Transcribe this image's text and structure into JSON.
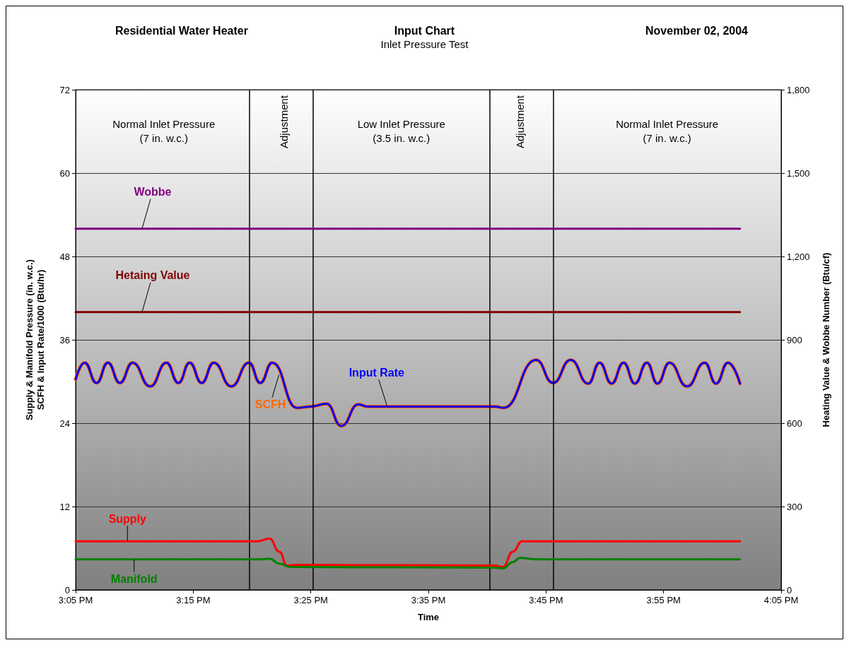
{
  "chart_data": {
    "type": "line",
    "title": "Input Chart",
    "subtitle": "Inlet Pressure Test",
    "annotations": [
      "Residential Water Heater",
      "November 02, 2004",
      "Normal Inlet Pressure\n(7 in. w.c.)",
      "Adjustment",
      "Low Inlet Pressure\n(3.5 in. w.c.)",
      "Adjustment",
      "Normal Inlet Pressure\n(7 in. w.c.)"
    ],
    "xlabel": "Time",
    "ylabel": "Supply & Manifold Pressure (in. w.c.)\nSCFH & Input Rate/1000 (Btu/hr)",
    "y2label": "Heating Value & Wobbe Number (Btu/cf)",
    "xlim": [
      15.0833,
      16.0833
    ],
    "xticks": [
      {
        "value": 15.0833,
        "label": "3:05 PM"
      },
      {
        "value": 15.25,
        "label": "3:15 PM"
      },
      {
        "value": 15.4167,
        "label": "3:25 PM"
      },
      {
        "value": 15.5833,
        "label": "3:35 PM"
      },
      {
        "value": 15.75,
        "label": "3:45 PM"
      },
      {
        "value": 15.9167,
        "label": "3:55 PM"
      },
      {
        "value": 16.0833,
        "label": "4:05 PM"
      }
    ],
    "ylim": [
      0,
      72
    ],
    "yticks": [
      0,
      12,
      24,
      36,
      48,
      60,
      72
    ],
    "y2lim": [
      0,
      1800
    ],
    "y2ticks": [
      0,
      {
        "value": 300,
        "label": "300"
      },
      {
        "value": 600,
        "label": "600"
      },
      {
        "value": 900,
        "label": "900"
      },
      {
        "value": 1200,
        "label": "1,200"
      },
      {
        "value": 1500,
        "label": "1,500"
      },
      {
        "value": 1800,
        "label": "1,800"
      }
    ],
    "grid": "y",
    "legend": false,
    "marker": "none",
    "line_style": "solid",
    "ref_lines": [
      {
        "axis": "x",
        "value": 15.3333,
        "color": "#000000"
      },
      {
        "axis": "x",
        "value": 15.4233,
        "color": "#000000"
      },
      {
        "axis": "x",
        "value": 15.6667,
        "color": "#000000"
      },
      {
        "axis": "x",
        "value": 15.76,
        "color": "#000000"
      }
    ],
    "series": [
      {
        "name": "SCFH",
        "color": "#ff6600",
        "x": [
          15.0833,
          15.096,
          15.113,
          15.129,
          15.146,
          15.164,
          15.189,
          15.212,
          15.229,
          15.245,
          15.262,
          15.279,
          15.304,
          15.329,
          15.345,
          15.362,
          15.397,
          15.417,
          15.439,
          15.46,
          15.484,
          15.497,
          15.678,
          15.69,
          15.736,
          15.76,
          15.785,
          15.81,
          15.826,
          15.843,
          15.86,
          15.876,
          15.893,
          15.908,
          15.925,
          15.95,
          15.975,
          15.991,
          16.008,
          16.025
        ],
        "values": [
          30.3,
          32.7,
          29.8,
          32.7,
          29.8,
          32.7,
          29.3,
          32.7,
          29.8,
          32.7,
          29.8,
          32.7,
          29.3,
          32.7,
          29.8,
          32.7,
          26.2,
          26.4,
          26.8,
          23.6,
          26.7,
          26.4,
          26.4,
          26.2,
          33.1,
          29.8,
          33.1,
          29.7,
          32.7,
          29.7,
          32.7,
          29.7,
          32.7,
          29.7,
          32.7,
          29.3,
          32.7,
          29.7,
          32.7,
          29.7
        ]
      },
      {
        "name": "Input Rate",
        "color": "#0000ff",
        "x": [
          15.0833,
          15.096,
          15.113,
          15.129,
          15.146,
          15.164,
          15.189,
          15.212,
          15.229,
          15.245,
          15.262,
          15.279,
          15.304,
          15.329,
          15.345,
          15.362,
          15.397,
          15.417,
          15.439,
          15.46,
          15.484,
          15.497,
          15.678,
          15.69,
          15.736,
          15.76,
          15.785,
          15.81,
          15.826,
          15.843,
          15.86,
          15.876,
          15.893,
          15.908,
          15.925,
          15.95,
          15.975,
          15.991,
          16.008,
          16.025
        ],
        "values": [
          30.3,
          32.7,
          29.8,
          32.7,
          29.8,
          32.7,
          29.3,
          32.7,
          29.8,
          32.7,
          29.8,
          32.7,
          29.3,
          32.7,
          29.8,
          32.7,
          26.2,
          26.4,
          26.8,
          23.6,
          26.7,
          26.4,
          26.4,
          26.2,
          33.1,
          29.8,
          33.1,
          29.7,
          32.7,
          29.7,
          32.7,
          29.7,
          32.7,
          29.7,
          32.7,
          29.3,
          32.7,
          29.7,
          32.7,
          29.7
        ]
      },
      {
        "name": "Supply",
        "color": "#ff0000",
        "x": [
          15.0833,
          15.342,
          15.358,
          15.372,
          15.383,
          15.397,
          15.678,
          15.689,
          15.703,
          15.716,
          16.025
        ],
        "values": [
          7.0,
          7.0,
          7.4,
          5.5,
          3.5,
          3.6,
          3.5,
          3.3,
          5.5,
          7.0,
          7.0
        ]
      },
      {
        "name": "Manifold",
        "color": "#008000",
        "x": [
          15.0833,
          15.347,
          15.358,
          15.372,
          15.387,
          15.678,
          15.689,
          15.703,
          15.713,
          15.738,
          16.025
        ],
        "values": [
          4.4,
          4.4,
          4.5,
          3.8,
          3.3,
          3.2,
          3.1,
          4.0,
          4.6,
          4.4,
          4.4
        ]
      },
      {
        "name": "Hetaing Value",
        "color": "#800000",
        "axis": "y2",
        "x": [
          15.0833,
          16.025
        ],
        "values": [
          1000,
          1000
        ]
      },
      {
        "name": "Wobbe",
        "color": "#800080",
        "axis": "y2",
        "x": [
          15.0833,
          16.025
        ],
        "values": [
          1300,
          1300
        ]
      }
    ]
  }
}
